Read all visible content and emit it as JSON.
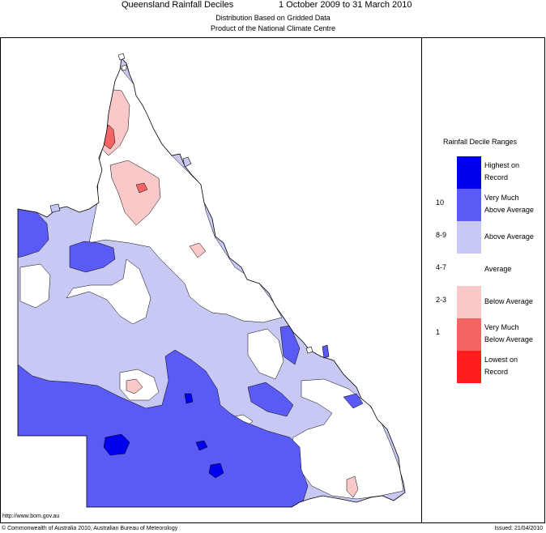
{
  "header": {
    "title": "Queensland Rainfall Deciles",
    "period": "1 October 2009 to 31 March 2010",
    "subtitle1": "Distribution Based on Gridded Data",
    "subtitle2": "Product of the National Climate Centre"
  },
  "legend": {
    "title": "Rainfall Decile Ranges",
    "items": [
      {
        "line1": "Highest on",
        "line2": "Record",
        "range": "",
        "color": "#0000ee"
      },
      {
        "line1": "Very Much",
        "line2": "Above Average",
        "range": "10",
        "color": "#5a5af5"
      },
      {
        "line1": "Above Average",
        "line2": "",
        "range": "8-9",
        "color": "#c8c8f5"
      },
      {
        "line1": "Average",
        "line2": "",
        "range": "4-7",
        "color": "#ffffff"
      },
      {
        "line1": "Below Average",
        "line2": "",
        "range": "2-3",
        "color": "#f9c8c8"
      },
      {
        "line1": "Very Much",
        "line2": "Below Average",
        "range": "1",
        "color": "#f56464"
      },
      {
        "line1": "Lowest on",
        "line2": "Record",
        "range": "",
        "color": "#ff1e1e"
      }
    ]
  },
  "footer": {
    "url": "http://www.bom.gov.au",
    "copyright": "© Commonwealth of Australia 2010, Australian Bureau of Meteorology",
    "issued": "Issued: 21/04/2010"
  }
}
